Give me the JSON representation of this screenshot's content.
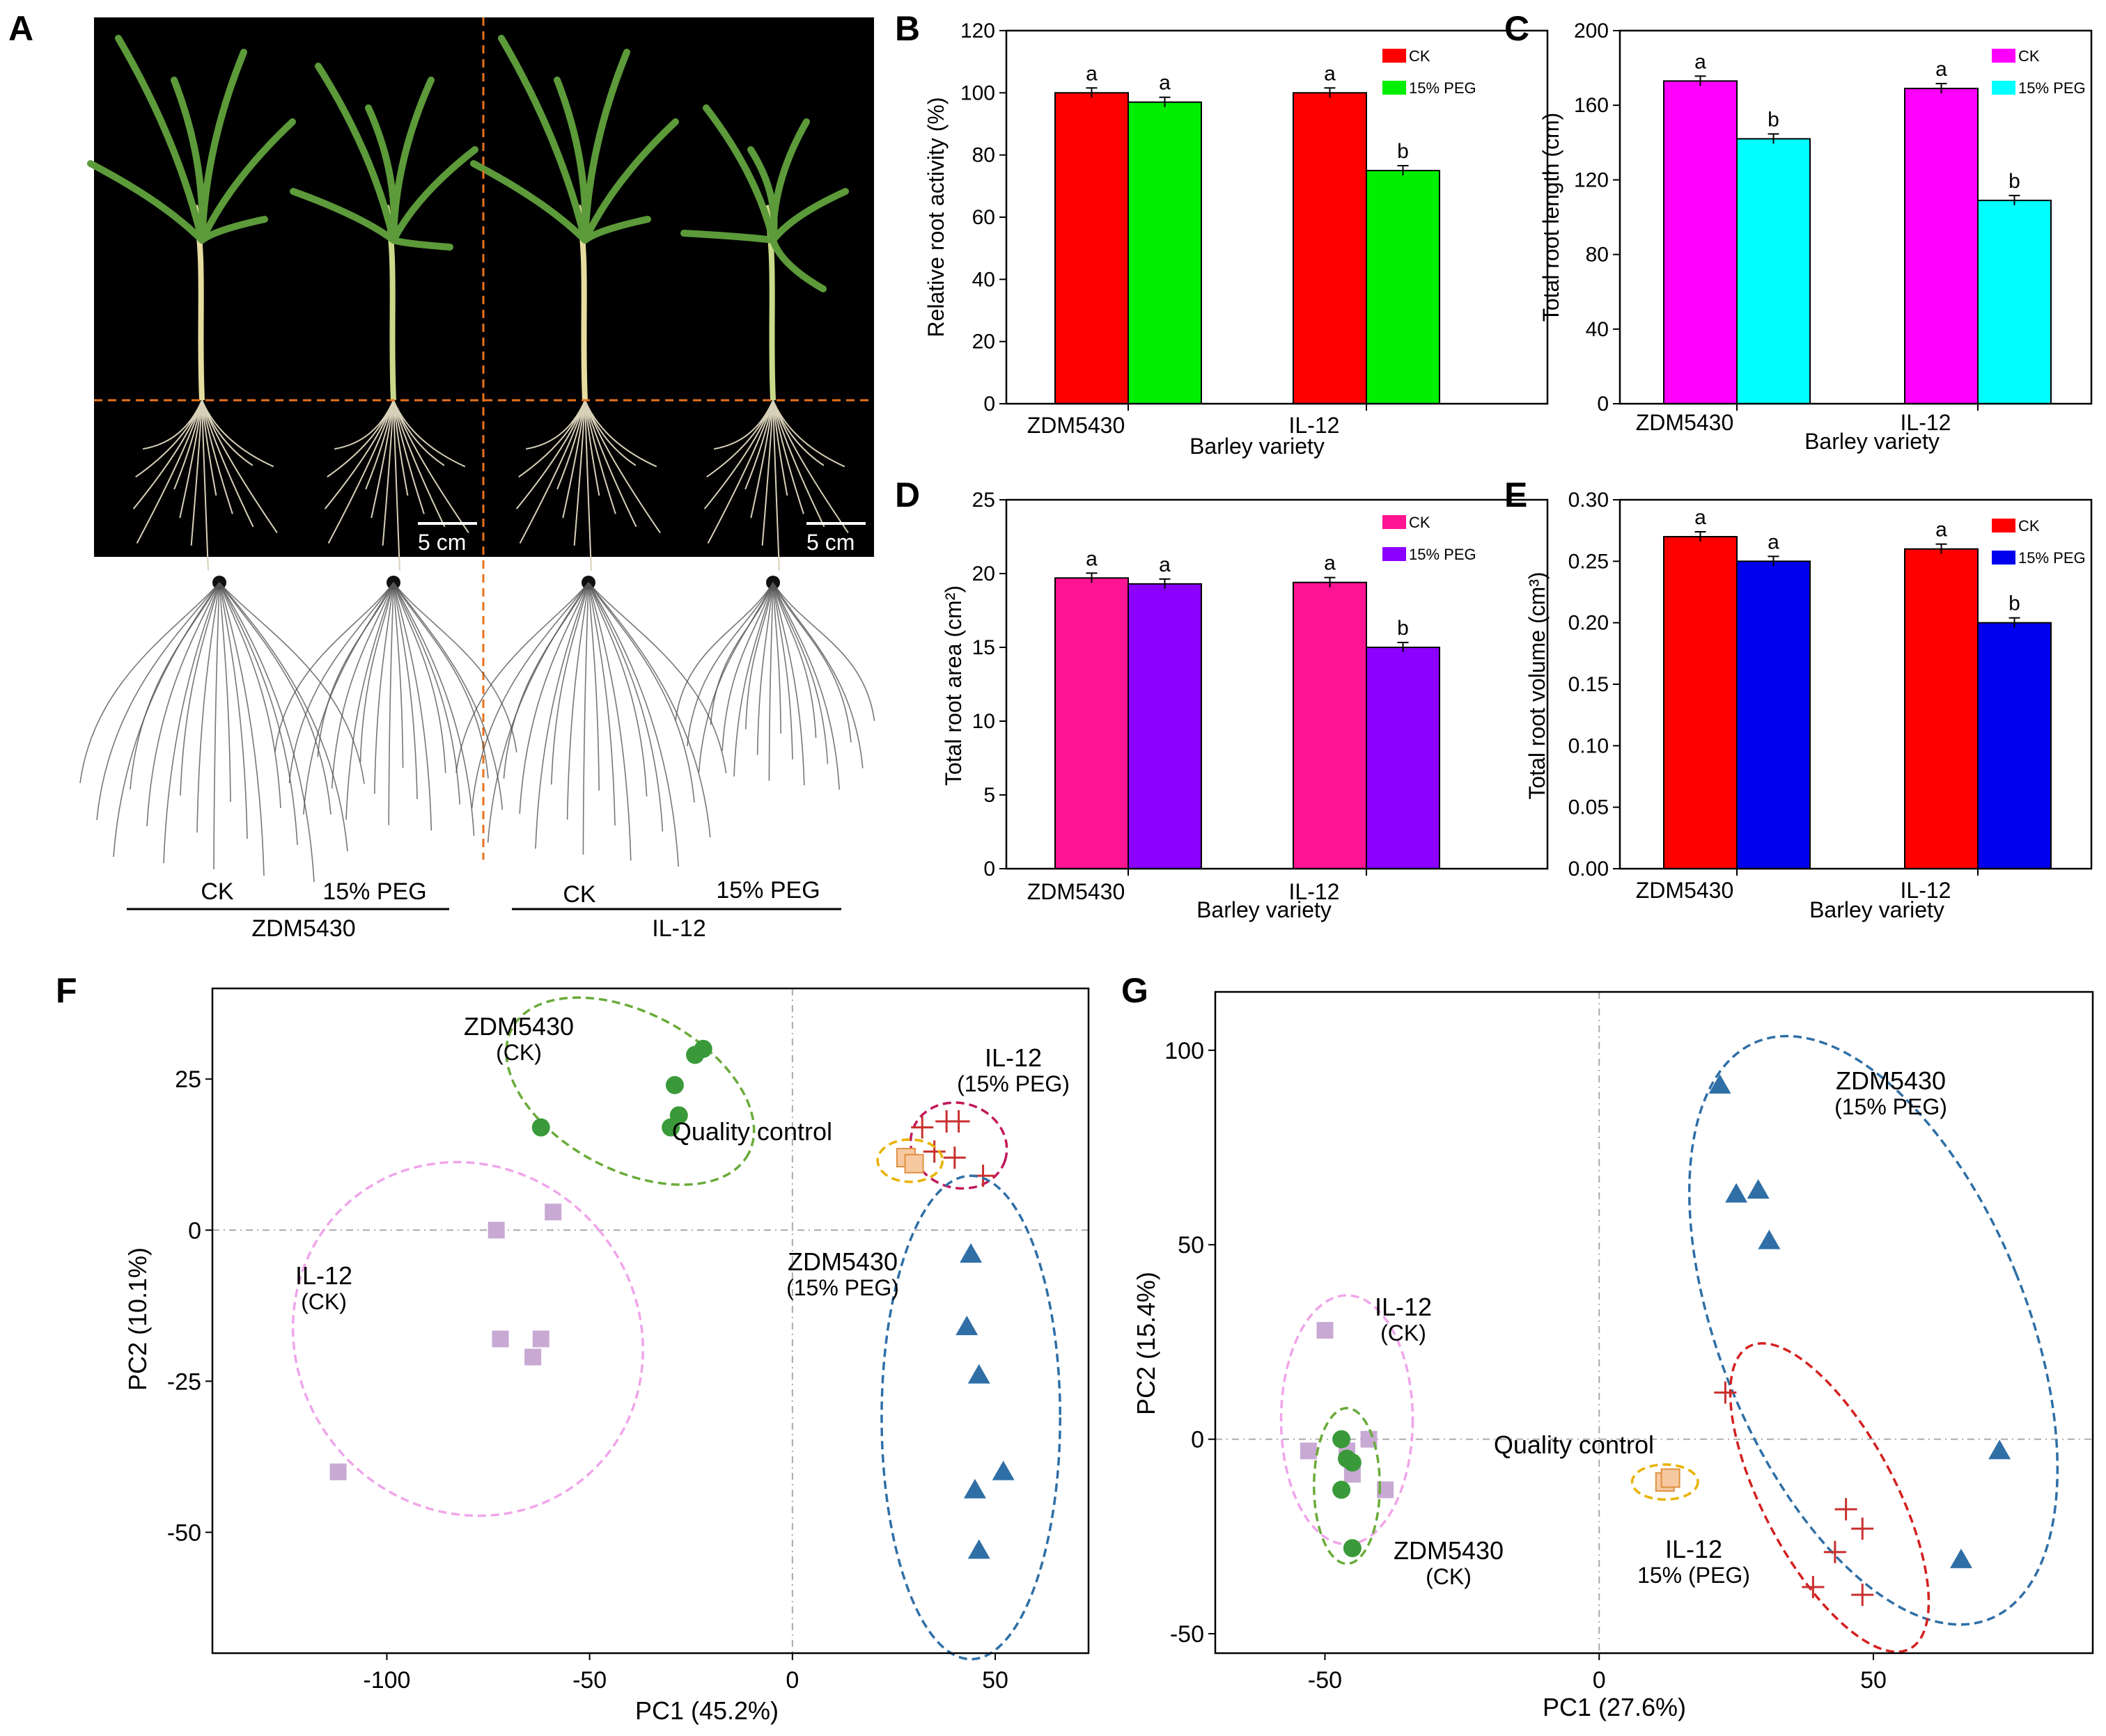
{
  "panels": {
    "A": {
      "letter": "A",
      "scale_bar": "5 cm",
      "treatments": [
        "CK",
        "15% PEG"
      ],
      "varieties": [
        "ZDM5430",
        "IL-12"
      ]
    }
  },
  "colors": {
    "green_pca": "#3a9a3a",
    "pink_pca": "#e7a6e2",
    "blue_pca": "#2f6fa6",
    "red_pca": "#c8302e",
    "magenta_pca": "#c2185b",
    "gold_pca": "#e9b200",
    "qc_fill": "#f6c9a0"
  },
  "chart_data": [
    {
      "panel": "B",
      "type": "bar",
      "categories": [
        "ZDM5430",
        "IL-12"
      ],
      "series": [
        {
          "name": "CK",
          "color": "#ff0000",
          "values": [
            100,
            100
          ],
          "letters": [
            "a",
            "a"
          ]
        },
        {
          "name": "15% PEG",
          "color": "#00ee00",
          "values": [
            97,
            75
          ],
          "letters": [
            "a",
            "b"
          ]
        }
      ],
      "xlabel": "Barley variety",
      "ylabel": "Relative root activity (%)",
      "ylim": [
        0,
        120
      ],
      "yticks": [
        "0",
        "20",
        "40",
        "60",
        "80",
        "100",
        "120"
      ]
    },
    {
      "panel": "C",
      "type": "bar",
      "categories": [
        "ZDM5430",
        "IL-12"
      ],
      "series": [
        {
          "name": "CK",
          "color": "#ff00ff",
          "values": [
            173,
            169
          ],
          "letters": [
            "a",
            "a"
          ]
        },
        {
          "name": "15% PEG",
          "color": "#00ffff",
          "values": [
            142,
            109
          ],
          "letters": [
            "b",
            "b"
          ]
        }
      ],
      "xlabel": "Barley variety",
      "ylabel": "Total root length (cm)",
      "ylim": [
        0,
        200
      ],
      "yticks": [
        "0",
        "40",
        "80",
        "120",
        "160",
        "200"
      ]
    },
    {
      "panel": "D",
      "type": "bar",
      "categories": [
        "ZDM5430",
        "IL-12"
      ],
      "series": [
        {
          "name": "CK",
          "color": "#ff1493",
          "values": [
            19.7,
            19.4
          ],
          "letters": [
            "a",
            "a"
          ]
        },
        {
          "name": "15% PEG",
          "color": "#8b00ff",
          "values": [
            19.3,
            15.0
          ],
          "letters": [
            "a",
            "b"
          ]
        }
      ],
      "xlabel": "Barley variety",
      "ylabel": "Total root area (cm²)",
      "ylim": [
        0,
        25
      ],
      "yticks": [
        "0",
        "5",
        "10",
        "15",
        "20",
        "25"
      ]
    },
    {
      "panel": "E",
      "type": "bar",
      "categories": [
        "ZDM5430",
        "IL-12"
      ],
      "series": [
        {
          "name": "CK",
          "color": "#ff0000",
          "values": [
            0.27,
            0.26
          ],
          "letters": [
            "a",
            "a"
          ]
        },
        {
          "name": "15% PEG",
          "color": "#0000ee",
          "values": [
            0.25,
            0.2
          ],
          "letters": [
            "a",
            "b"
          ]
        }
      ],
      "xlabel": "Barley variety",
      "ylabel": "Total root volume (cm³)",
      "ylim": [
        0,
        0.3
      ],
      "yticks": [
        "0.00",
        "0.05",
        "0.10",
        "0.15",
        "0.20",
        "0.25",
        "0.30"
      ]
    },
    {
      "panel": "F",
      "type": "scatter",
      "xlabel": "PC1 (45.2%)",
      "ylabel": "PC2 (10.1%)",
      "xlim": [
        -143,
        73
      ],
      "ylim": [
        -70,
        40
      ],
      "xticks": [
        -100,
        -50,
        0,
        50
      ],
      "yticks": [
        -50,
        -25,
        0,
        25
      ],
      "groups": [
        {
          "name": "ZDM5430",
          "sub": "(CK)",
          "marker": "circle",
          "color": "#3a9a3a",
          "points": [
            [
              -62,
              17
            ],
            [
              -30,
              17
            ],
            [
              -28,
              19
            ],
            [
              -29,
              24
            ],
            [
              -24,
              29
            ],
            [
              -22,
              30
            ]
          ],
          "ellipse": {
            "cx": -40,
            "cy": 23,
            "rx": 33,
            "ry": 13,
            "angle": 28
          }
        },
        {
          "name": "IL-12",
          "sub": "(15% PEG)",
          "marker": "plus",
          "color": "#c8302e",
          "points": [
            [
              32,
              17
            ],
            [
              38,
              18
            ],
            [
              41,
              18
            ],
            [
              35,
              13
            ],
            [
              40,
              12
            ],
            [
              47,
              9
            ]
          ],
          "ellipse": {
            "cx": 41,
            "cy": 14,
            "rx": 12,
            "ry": 7,
            "angle": 18
          }
        },
        {
          "name": "Quality control",
          "sub": "",
          "marker": "qc",
          "color": "#e9b200",
          "points": [
            [
              28,
              12
            ],
            [
              30,
              11
            ]
          ],
          "ellipse": {
            "cx": 29,
            "cy": 11.5,
            "rx": 8,
            "ry": 3.5,
            "angle": 0
          }
        },
        {
          "name": "IL-12",
          "sub": "(CK)",
          "marker": "square",
          "color": "#c8a9d4",
          "points": [
            [
              -73,
              0
            ],
            [
              -59,
              3
            ],
            [
              -72,
              -18
            ],
            [
              -62,
              -18
            ],
            [
              -64,
              -21
            ],
            [
              -112,
              -40
            ]
          ],
          "ellipse": {
            "cx": -80,
            "cy": -18,
            "rx": 42,
            "ry": 30,
            "angle": -40
          }
        },
        {
          "name": "ZDM5430",
          "sub": "(15% PEG)",
          "marker": "triangle",
          "color": "#2f6fa6",
          "points": [
            [
              44,
              -4
            ],
            [
              43,
              -16
            ],
            [
              46,
              -24
            ],
            [
              45,
              -43
            ],
            [
              52,
              -40
            ],
            [
              46,
              -53
            ]
          ],
          "ellipse": {
            "cx": 44,
            "cy": -31,
            "rx": 22,
            "ry": 40,
            "angle": 0
          }
        }
      ]
    },
    {
      "panel": "G",
      "type": "scatter",
      "xlabel": "PC1 (27.6%)",
      "ylabel": "PC2 (15.4%)",
      "xlim": [
        -70,
        90
      ],
      "ylim": [
        -55,
        115
      ],
      "xticks": [
        -50,
        0,
        50
      ],
      "yticks": [
        -50,
        0,
        50,
        100
      ],
      "groups": [
        {
          "name": "IL-12",
          "sub": "(CK)",
          "marker": "square",
          "color": "#c8a9d4",
          "points": [
            [
              -50,
              28
            ],
            [
              -53,
              -3
            ],
            [
              -46,
              -3
            ],
            [
              -42,
              0
            ],
            [
              -45,
              -9
            ],
            [
              -39,
              -13
            ]
          ],
          "ellipse": {
            "cx": -46,
            "cy": 5,
            "rx": 12,
            "ry": 32,
            "angle": 0
          }
        },
        {
          "name": "ZDM5430",
          "sub": "(CK)",
          "marker": "circle",
          "color": "#3a9a3a",
          "points": [
            [
              -47,
              0
            ],
            [
              -46,
              -5
            ],
            [
              -45,
              -6
            ],
            [
              -47,
              -13
            ],
            [
              -45,
              -28
            ]
          ],
          "ellipse": {
            "cx": -46,
            "cy": -12,
            "rx": 6,
            "ry": 20,
            "angle": 0
          }
        },
        {
          "name": "ZDM5430",
          "sub": "(15% PEG)",
          "marker": "triangle",
          "color": "#2f6fa6",
          "points": [
            [
              22,
              91
            ],
            [
              25,
              63
            ],
            [
              29,
              64
            ],
            [
              31,
              51
            ],
            [
              73,
              -3
            ],
            [
              66,
              -31
            ]
          ],
          "ellipse": {
            "cx": 50,
            "cy": 28,
            "rx": 28,
            "ry": 80,
            "angle": -22
          }
        },
        {
          "name": "IL-12",
          "sub": "15% (PEG)",
          "marker": "plus",
          "color": "#c8302e",
          "points": [
            [
              23,
              12
            ],
            [
              45,
              -18
            ],
            [
              48,
              -23
            ],
            [
              43,
              -29
            ],
            [
              39,
              -38
            ],
            [
              48,
              -40
            ]
          ],
          "ellipse": {
            "cx": 42,
            "cy": -15,
            "rx": 12,
            "ry": 44,
            "angle": -28
          }
        },
        {
          "name": "Quality control",
          "sub": "",
          "marker": "qc",
          "color": "#e9b200",
          "points": [
            [
              12,
              -11
            ],
            [
              13,
              -10
            ]
          ],
          "ellipse": {
            "cx": 12,
            "cy": -11,
            "rx": 6,
            "ry": 4.5,
            "angle": 0
          }
        }
      ]
    }
  ]
}
